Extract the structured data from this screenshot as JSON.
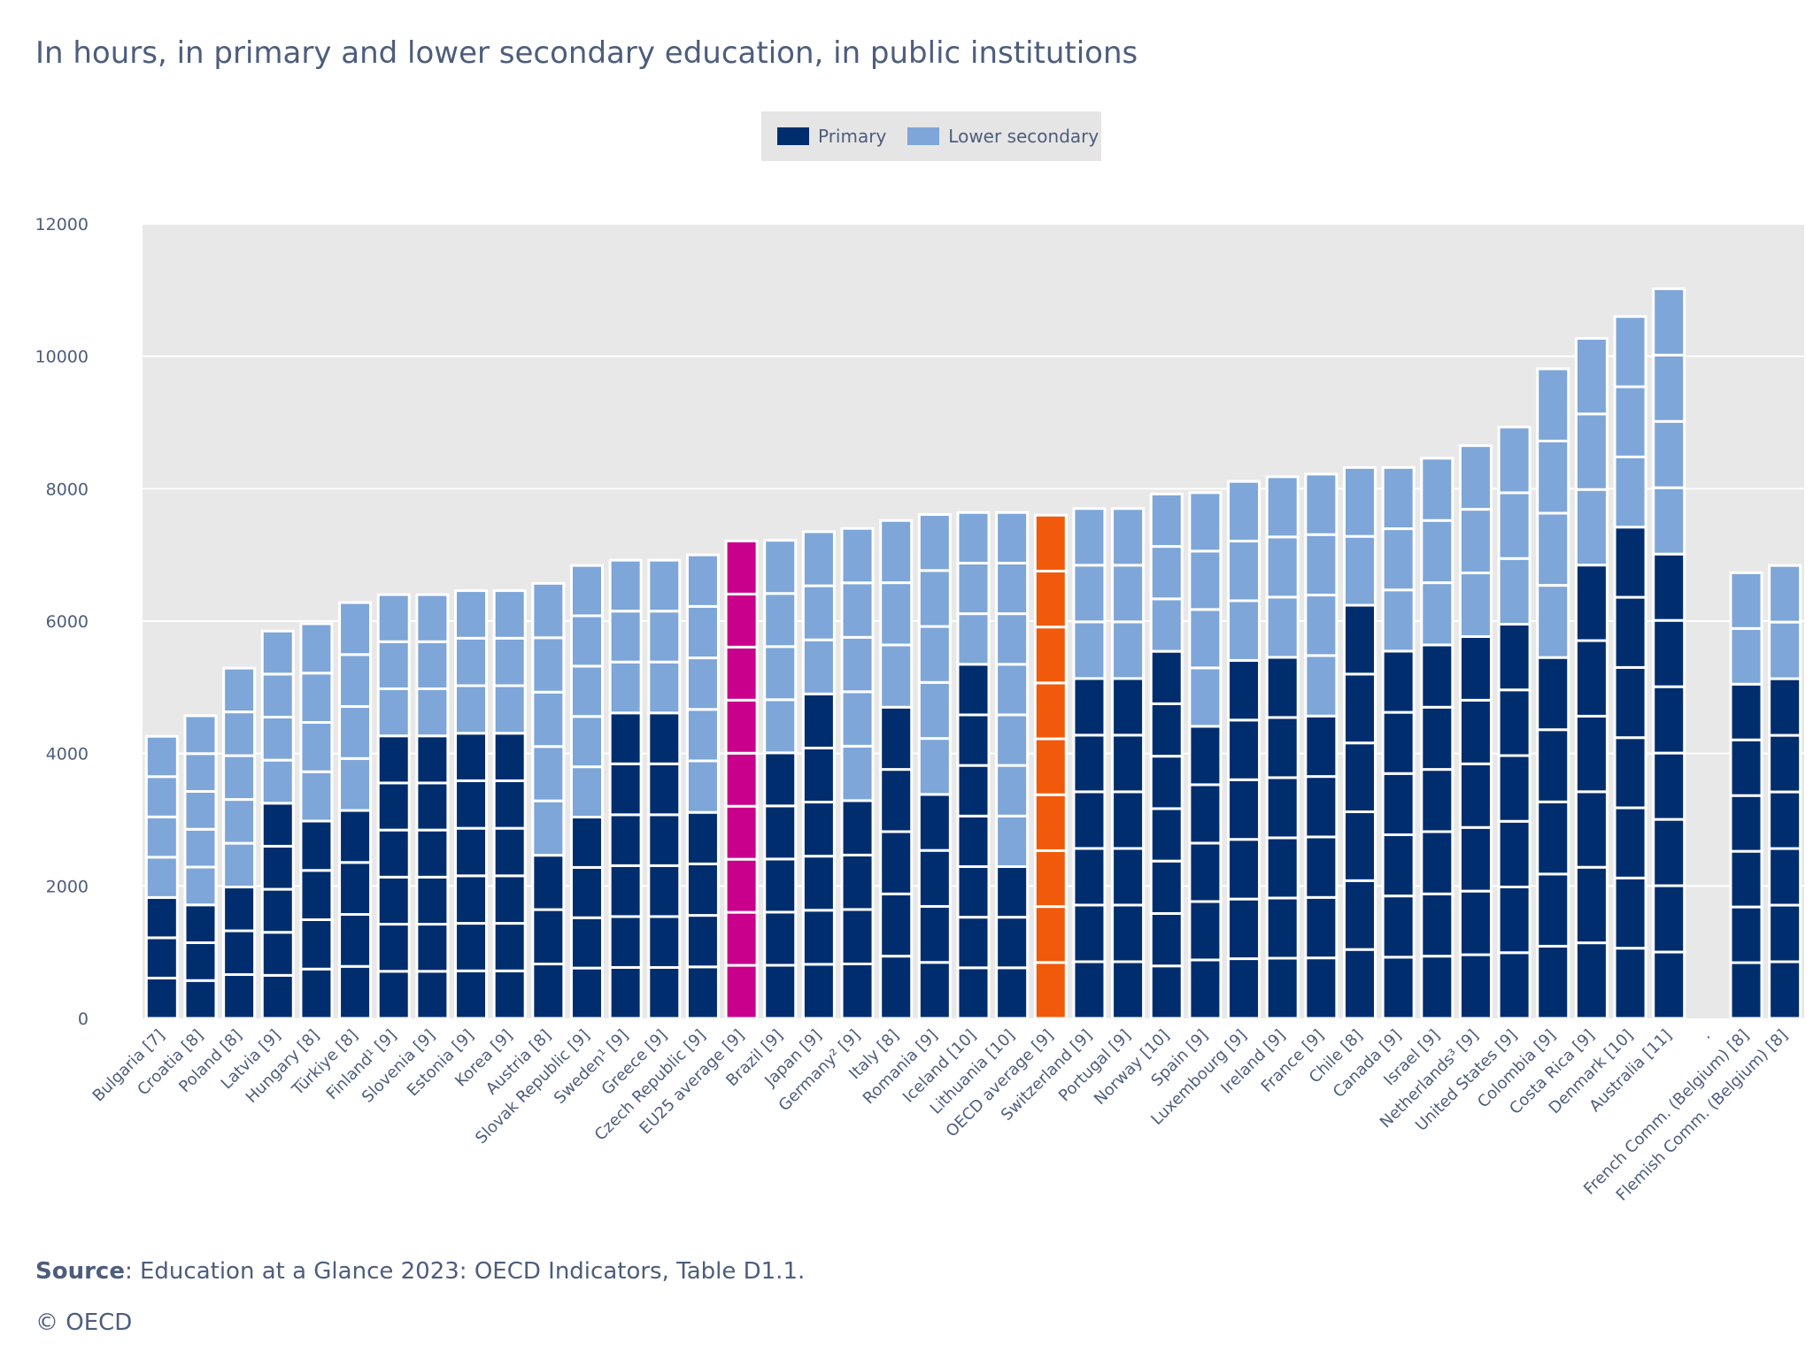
{
  "subtitle": "In hours, in primary and lower secondary education, in public institutions",
  "legend": {
    "primary": {
      "label": "Primary",
      "color": "#002d6e"
    },
    "lower_secondary": {
      "label": "Lower secondary",
      "color": "#7ea6d8"
    }
  },
  "source": {
    "label": "Source",
    "text": ": Education at a Glance 2023: OECD Indicators, Table D1.1."
  },
  "copyright": "© OECD",
  "chart_data": {
    "type": "bar",
    "stacked": true,
    "ylim": [
      0,
      12000
    ],
    "yticks": [
      0,
      2000,
      4000,
      6000,
      8000,
      10000,
      12000
    ],
    "grid": true,
    "legend_position": "top-center",
    "highlight_colors": {
      "EU25 average [9]": "#c8008c",
      "OECD average [9]": "#f05a0a"
    },
    "categories": [
      "Bulgaria [7]",
      "Croatia [8]",
      "Poland [8]",
      "Latvia [9]",
      "Hungary [8]",
      "Türkiye [8]",
      "Finland¹ [9]",
      "Slovenia [9]",
      "Estonia [9]",
      "Korea [9]",
      "Austria [8]",
      "Slovak Republic [9]",
      "Sweden¹ [9]",
      "Greece [9]",
      "Czech Republic [9]",
      "EU25 average [9]",
      "Brazil [9]",
      "Japan [9]",
      "Germany² [9]",
      "Italy [8]",
      "Romania [9]",
      "Iceland [10]",
      "Lithuania [10]",
      "OECD average [9]",
      "Switzerland [9]",
      "Portugal [9]",
      "Norway [10]",
      "Spain [9]",
      "Luxembourg [9]",
      "Ireland [9]",
      "France [9]",
      "Chile [8]",
      "Canada [9]",
      "Israel [9]",
      "Netherlands³ [9]",
      "United States [9]",
      "Colombia [9]",
      "Costa Rica [9]",
      "Denmark [10]",
      "Australia [11]",
      ".",
      "French Comm. (Belgium) [8]",
      "Flemish Comm. (Belgium) [8]"
    ],
    "years": [
      7,
      8,
      8,
      9,
      8,
      8,
      9,
      9,
      9,
      9,
      8,
      9,
      9,
      9,
      9,
      9,
      9,
      9,
      9,
      8,
      9,
      10,
      10,
      9,
      9,
      9,
      10,
      9,
      9,
      9,
      9,
      8,
      9,
      9,
      9,
      9,
      9,
      9,
      10,
      11,
      0,
      8,
      8
    ],
    "series": [
      {
        "name": "Primary",
        "values": [
          2030,
          1890,
          2250,
          3520,
          2730,
          2900,
          3980,
          4110,
          3980,
          3950,
          2840,
          2720,
          4300,
          4490,
          3440,
          4580,
          4000,
          4680,
          2900,
          4550,
          3610,
          5100,
          2600,
          4030,
          4810,
          5250,
          5280,
          4760,
          5580,
          5440,
          4330,
          6200,
          5550,
          5520,
          5650,
          5870,
          5010,
          6890,
          7030,
          7030,
          0,
          4980,
          4950
        ]
      },
      {
        "name": "Lower secondary",
        "values": [
          2230,
          2680,
          3040,
          2330,
          3230,
          3380,
          2420,
          2290,
          2480,
          2510,
          3730,
          4120,
          2620,
          2430,
          3560,
          2630,
          3220,
          2670,
          4500,
          2970,
          4000,
          2540,
          5040,
          3570,
          2890,
          2450,
          2640,
          3180,
          2530,
          2740,
          3890,
          2120,
          2770,
          2940,
          3000,
          3060,
          4800,
          3380,
          3570,
          3990,
          0,
          1750,
          1890
        ]
      }
    ]
  }
}
